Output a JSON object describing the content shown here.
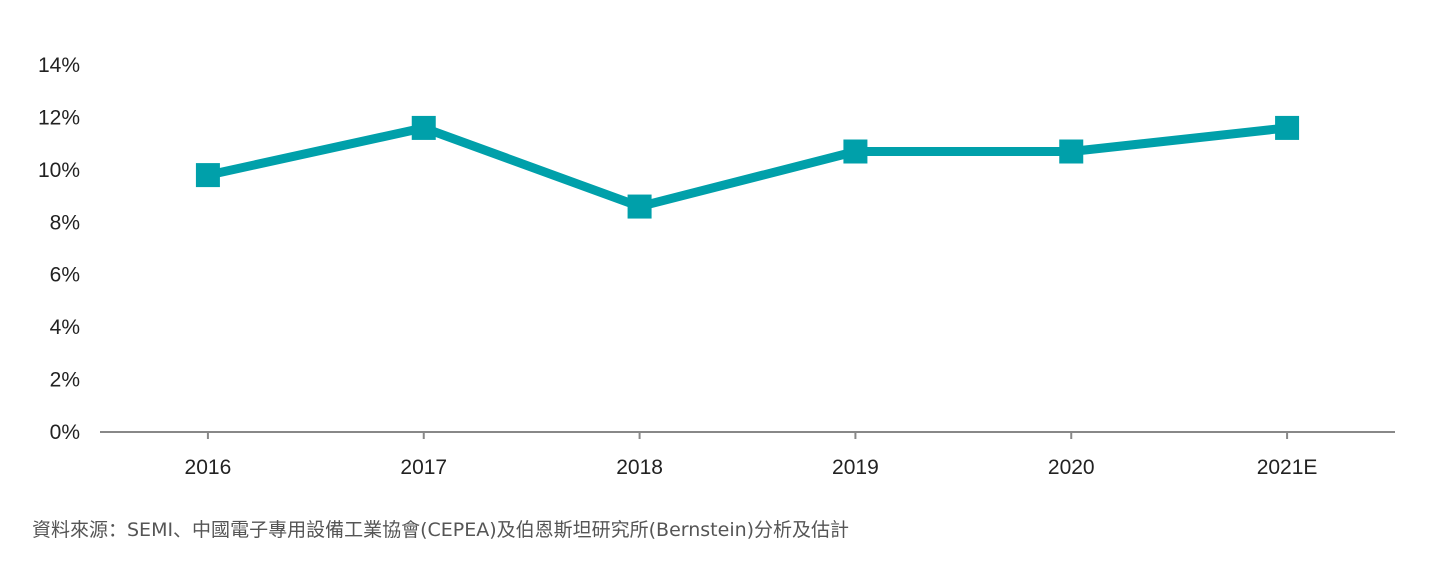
{
  "chart_data": {
    "type": "line",
    "title": "",
    "xlabel": "",
    "ylabel": "",
    "categories": [
      "2016",
      "2017",
      "2018",
      "2019",
      "2020",
      "2021E"
    ],
    "series": [
      {
        "values": [
          9.8,
          11.6,
          8.6,
          10.7,
          10.7,
          11.6
        ],
        "color": "#00A0AA",
        "marker": "square"
      }
    ],
    "ylim": [
      0,
      14
    ],
    "yticks": [
      0,
      2,
      4,
      6,
      8,
      10,
      12,
      14
    ],
    "ytick_labels": [
      "0%",
      "2%",
      "4%",
      "6%",
      "8%",
      "10%",
      "12%",
      "14%"
    ],
    "grid": false,
    "legend": "none"
  },
  "source_note": "資料來源：SEMI、中國電子專用設備工業協會(CEPEA)及伯恩斯坦研究所(Bernstein)分析及估計"
}
